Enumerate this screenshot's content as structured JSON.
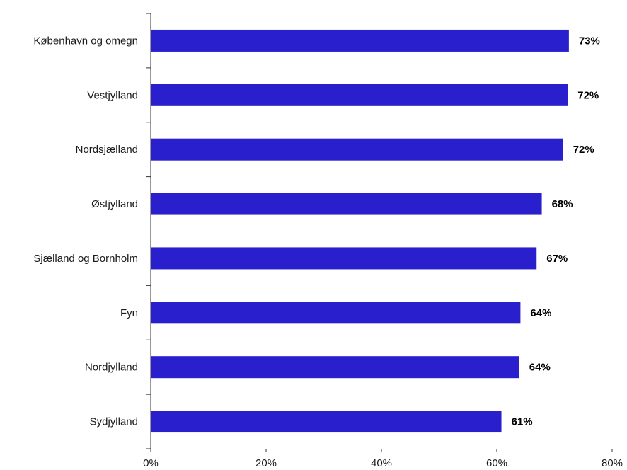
{
  "chart_data": {
    "type": "bar",
    "orientation": "horizontal",
    "categories": [
      "København og omegn",
      "Vestjylland",
      "Nordsjælland",
      "Østjylland",
      "Sjælland og Bornholm",
      "Fyn",
      "Nordjylland",
      "Sydjylland"
    ],
    "values": [
      72.5,
      72.3,
      71.5,
      67.8,
      66.9,
      64.1,
      63.9,
      60.8
    ],
    "value_labels": [
      "73%",
      "72%",
      "72%",
      "68%",
      "67%",
      "64%",
      "64%",
      "61%"
    ],
    "xlim": [
      0,
      80
    ],
    "x_ticks": [
      0,
      20,
      40,
      60,
      80
    ],
    "x_tick_labels": [
      "0%",
      "20%",
      "40%",
      "60%",
      "80%"
    ],
    "bar_color": "#2a1fcc",
    "grid": false,
    "legend": "none",
    "title": "",
    "xlabel": "",
    "ylabel": ""
  }
}
